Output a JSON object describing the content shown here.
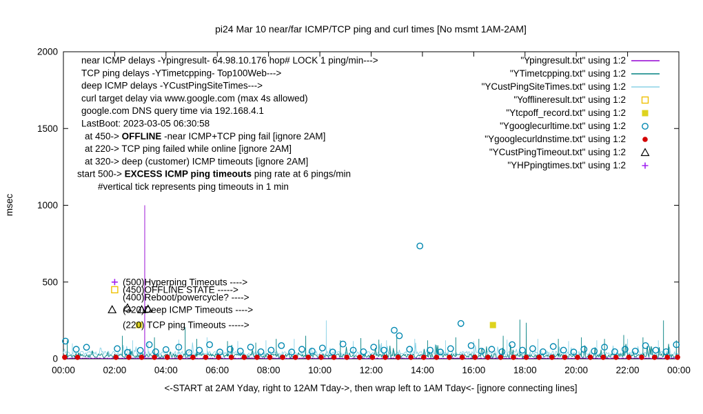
{
  "title": "pi24 Mar 10  near/far ICMP/TCP ping and curl times [No msmt 1AM-2AM]",
  "xlabel": "<-START at 2AM Yday, right to 12AM Tday->, then wrap left to 1AM Tday<- [ignore connecting lines]",
  "ylabel": "msec",
  "notes": [
    {
      "x": 118,
      "pre": "near ICMP delays -Ypingresult- 64.98.10.176 hop# LOCK 1 ping/min--->",
      "bold": "",
      "post": ""
    },
    {
      "x": 118,
      "pre": "TCP ping delays -YTimetcpping- Top100Web--->",
      "bold": "",
      "post": ""
    },
    {
      "x": 118,
      "pre": "deep ICMP delays -YCustPingSiteTimes--->",
      "bold": "",
      "post": ""
    },
    {
      "x": 118,
      "pre": "curl target delay via www.google.com (max 4s allowed)",
      "bold": "",
      "post": ""
    },
    {
      "x": 118,
      "pre": "google.com DNS query time via 192.168.4.1",
      "bold": "",
      "post": ""
    },
    {
      "x": 118,
      "pre": "LastBoot: 2023-03-05 06:30:58",
      "bold": "",
      "post": ""
    },
    {
      "x": 123,
      "pre": "at 450->  ",
      "bold": "OFFLINE",
      "post": "  -near ICMP+TCP ping fail [ignore 2AM]"
    },
    {
      "x": 123,
      "pre": "at 220-> TCP ping failed while online [ignore 2AM]",
      "bold": "",
      "post": ""
    },
    {
      "x": 123,
      "pre": "at 320-> deep (customer) ICMP timeouts [ignore 2AM]",
      "bold": "",
      "post": ""
    },
    {
      "x": 112,
      "pre": "start 500->  ",
      "bold": "EXCESS ICMP ping timeouts",
      "post": "  ping rate at 6 pings/min"
    },
    {
      "x": 142,
      "pre": "#vertical tick represents ping timeouts in 1 min",
      "bold": "",
      "post": ""
    }
  ],
  "mid_labels": [
    {
      "value": 500,
      "text": "(500)Hyperping Timeouts ---->"
    },
    {
      "value": 450,
      "text": "(450)OFFLINE STATE ----->"
    },
    {
      "value": 400,
      "text": "(400)Reboot/powercycle? ---->"
    },
    {
      "value": 320,
      "text": "(320)Deep ICMP Timeouts ---->"
    },
    {
      "value": 220,
      "text": "(220) TCP ping Timeouts ----->"
    }
  ],
  "chart_data": {
    "type": "line",
    "x_range_hours": [
      0,
      24
    ],
    "y_range": [
      0,
      2000
    ],
    "y_ticks": [
      0,
      500,
      1000,
      1500,
      2000
    ],
    "x_tick_labels": [
      "00:00",
      "02:00",
      "04:00",
      "06:00",
      "08:00",
      "10:00",
      "12:00",
      "14:00",
      "16:00",
      "18:00",
      "20:00",
      "22:00",
      "00:00"
    ],
    "grid": false,
    "legend_position": "top-right-inside",
    "series": [
      {
        "name": "Ypingresult",
        "legend": "\"Ypingresult.txt\" using 1:2",
        "kind": "line",
        "color": "#9400d3",
        "seed": 11,
        "baseline": 3,
        "noise": 4,
        "bump_chance": 0,
        "bump_max": 0,
        "spikes": [
          [
            3.17,
            1000
          ]
        ]
      },
      {
        "name": "YTimetcpping",
        "legend": "\"YTimetcpping.txt\" using 1:2",
        "kind": "line",
        "color": "#008080",
        "seed": 22,
        "baseline": 16,
        "noise": 26,
        "bump_chance": 0.05,
        "bump_max": 70,
        "spikes": [
          [
            0.15,
            120
          ],
          [
            2.3,
            150
          ],
          [
            3.55,
            140
          ],
          [
            4.75,
            205
          ],
          [
            5.2,
            130
          ],
          [
            6.4,
            115
          ],
          [
            7.5,
            105
          ],
          [
            8.3,
            130
          ],
          [
            9.45,
            150
          ],
          [
            10.8,
            120
          ],
          [
            11.6,
            135
          ],
          [
            12.3,
            125
          ],
          [
            13.0,
            155
          ],
          [
            14.2,
            120
          ],
          [
            15.3,
            140
          ],
          [
            16.2,
            130
          ],
          [
            17.15,
            150
          ],
          [
            17.8,
            255
          ],
          [
            18.05,
            235
          ],
          [
            19.3,
            130
          ],
          [
            20.2,
            140
          ],
          [
            21.1,
            130
          ],
          [
            21.85,
            155
          ],
          [
            22.6,
            140
          ],
          [
            23.4,
            250
          ],
          [
            23.9,
            120
          ]
        ]
      },
      {
        "name": "YCustPingSiteTimes",
        "legend": "\"YCustPingSiteTimes.txt\" using 1:2",
        "kind": "line",
        "color": "#8ad2e6",
        "seed": 33,
        "baseline": 30,
        "noise": 30,
        "bump_chance": 0.05,
        "bump_max": 60,
        "spikes": [
          [
            0.35,
            100
          ],
          [
            2.7,
            120
          ],
          [
            3.3,
            110
          ],
          [
            4.5,
            125
          ],
          [
            5.6,
            140
          ],
          [
            6.8,
            115
          ],
          [
            7.9,
            120
          ],
          [
            9.0,
            130
          ],
          [
            10.25,
            250
          ],
          [
            11.3,
            115
          ],
          [
            12.6,
            120
          ],
          [
            13.7,
            130
          ],
          [
            14.9,
            120
          ],
          [
            16.0,
            115
          ],
          [
            17.3,
            125
          ],
          [
            18.5,
            130
          ],
          [
            19.7,
            115
          ],
          [
            20.8,
            120
          ],
          [
            22.0,
            130
          ],
          [
            23.2,
            120
          ]
        ]
      },
      {
        "name": "Yofflineresult",
        "legend": "\"Yofflineresult.txt\" using 1:2",
        "kind": "scatter",
        "marker": "square-open",
        "color": "#efc000",
        "points": [
          [
            2.0,
            450
          ]
        ]
      },
      {
        "name": "Ytcpoff_record",
        "legend": "\"Ytcpoff_record.txt\" using 1:2",
        "kind": "scatter",
        "marker": "square-filled",
        "color": "#ded31e",
        "points": [
          [
            2.95,
            220
          ],
          [
            16.75,
            220
          ]
        ]
      },
      {
        "name": "Ygooglecurltime",
        "legend": "\"Ygooglecurltime.txt\" using 1:2",
        "kind": "scatter",
        "marker": "circle-open",
        "color": "#0087b0",
        "points": [
          [
            0.08,
            115
          ],
          [
            0.5,
            62
          ],
          [
            0.9,
            75
          ],
          [
            2.1,
            66
          ],
          [
            2.5,
            42
          ],
          [
            3.0,
            55
          ],
          [
            3.35,
            92
          ],
          [
            3.6,
            46
          ],
          [
            4.0,
            60
          ],
          [
            4.5,
            76
          ],
          [
            4.9,
            40
          ],
          [
            5.3,
            56
          ],
          [
            5.7,
            92
          ],
          [
            6.1,
            44
          ],
          [
            6.5,
            62
          ],
          [
            6.9,
            50
          ],
          [
            7.3,
            76
          ],
          [
            7.7,
            46
          ],
          [
            8.1,
            56
          ],
          [
            8.5,
            86
          ],
          [
            8.9,
            44
          ],
          [
            9.3,
            62
          ],
          [
            9.7,
            50
          ],
          [
            10.1,
            70
          ],
          [
            10.5,
            44
          ],
          [
            10.9,
            96
          ],
          [
            11.3,
            56
          ],
          [
            11.7,
            46
          ],
          [
            12.1,
            76
          ],
          [
            12.5,
            56
          ],
          [
            12.9,
            186
          ],
          [
            13.1,
            150
          ],
          [
            13.5,
            62
          ],
          [
            13.9,
            735
          ],
          [
            14.3,
            56
          ],
          [
            14.7,
            44
          ],
          [
            15.1,
            66
          ],
          [
            15.5,
            230
          ],
          [
            15.9,
            86
          ],
          [
            16.3,
            50
          ],
          [
            16.7,
            62
          ],
          [
            17.1,
            46
          ],
          [
            17.5,
            92
          ],
          [
            17.9,
            56
          ],
          [
            18.3,
            66
          ],
          [
            18.7,
            46
          ],
          [
            19.1,
            80
          ],
          [
            19.5,
            56
          ],
          [
            19.9,
            44
          ],
          [
            20.3,
            62
          ],
          [
            20.7,
            50
          ],
          [
            21.1,
            76
          ],
          [
            21.5,
            46
          ],
          [
            21.9,
            62
          ],
          [
            22.3,
            50
          ],
          [
            22.7,
            86
          ],
          [
            23.1,
            56
          ],
          [
            23.5,
            46
          ],
          [
            23.9,
            92
          ]
        ]
      },
      {
        "name": "Ygooglecurldnstime",
        "legend": "\"Ygooglecurldnstime.txt\" using 1:2",
        "kind": "scatter",
        "marker": "circle-filled",
        "color": "#d40000",
        "hours": [
          0.05,
          0.55,
          2.05,
          2.55,
          3.05,
          3.55,
          4.05,
          4.55,
          5.05,
          5.55,
          6.05,
          6.55,
          7.05,
          7.55,
          8.05,
          8.55,
          9.05,
          9.55,
          10.05,
          10.55,
          11.05,
          11.55,
          12.05,
          12.55,
          13.05,
          13.55,
          14.05,
          14.55,
          15.05,
          15.55,
          16.05,
          16.55,
          17.05,
          17.55,
          18.05,
          18.55,
          19.05,
          19.55,
          20.05,
          20.55,
          21.05,
          21.55,
          22.05,
          22.55,
          23.05,
          23.55,
          23.95
        ],
        "y_value": 10
      },
      {
        "name": "YCustPingTimeout",
        "legend": "\"YCustPingTimeout.txt\" using 1:2",
        "kind": "scatter",
        "marker": "triangle-open",
        "color": "#000000",
        "points": [
          [
            1.9,
            320
          ],
          [
            2.5,
            332
          ],
          [
            3.05,
            320
          ],
          [
            3.3,
            324
          ]
        ]
      },
      {
        "name": "YHPpingtimes",
        "legend": "\"YHPpingtimes.txt\" using 1:2",
        "kind": "scatter",
        "marker": "plus",
        "color": "#a020f0",
        "points": [
          [
            2.0,
            500
          ]
        ]
      }
    ]
  }
}
